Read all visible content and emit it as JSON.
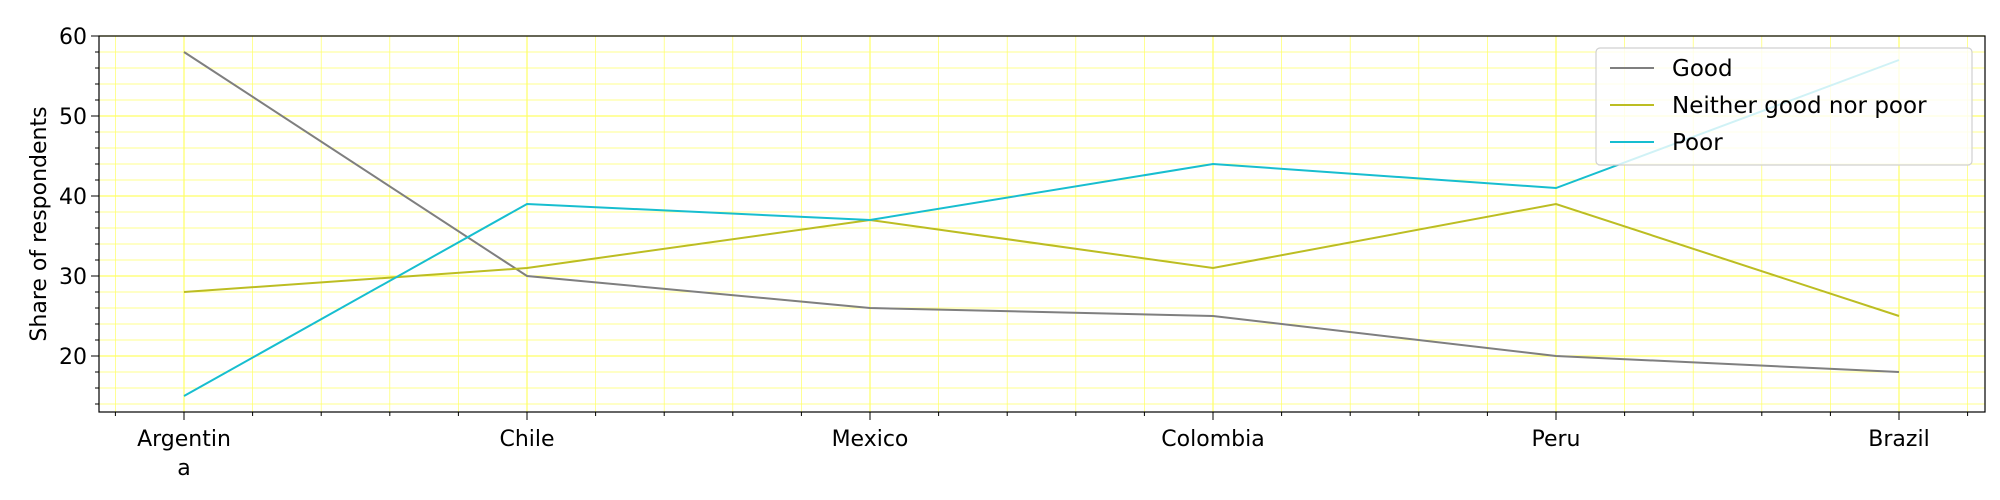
{
  "chart_data": {
    "type": "line",
    "categories": [
      "Argentina",
      "Chile",
      "Mexico",
      "Colombia",
      "Peru",
      "Brazil"
    ],
    "category_display": [
      [
        "Argentin",
        "a"
      ],
      [
        "Chile"
      ],
      [
        "Mexico"
      ],
      [
        "Colombia"
      ],
      [
        "Peru"
      ],
      [
        "Brazil"
      ]
    ],
    "series": [
      {
        "name": "Good",
        "color": "#7f7f7f",
        "values": [
          58,
          30,
          26,
          25,
          20,
          18
        ]
      },
      {
        "name": "Neither good nor poor",
        "color": "#bcbd22",
        "values": [
          28,
          31,
          37,
          31,
          39,
          25
        ]
      },
      {
        "name": "Poor",
        "color": "#17becf",
        "values": [
          15,
          39,
          37,
          44,
          41,
          57
        ]
      }
    ],
    "xlabel": "",
    "ylabel": "Share of respondents",
    "ylim": [
      13,
      60
    ],
    "yticks": [
      20,
      30,
      40,
      50,
      60
    ],
    "grid": true,
    "grid_color": "#ffff66",
    "legend_position": "top-right"
  }
}
